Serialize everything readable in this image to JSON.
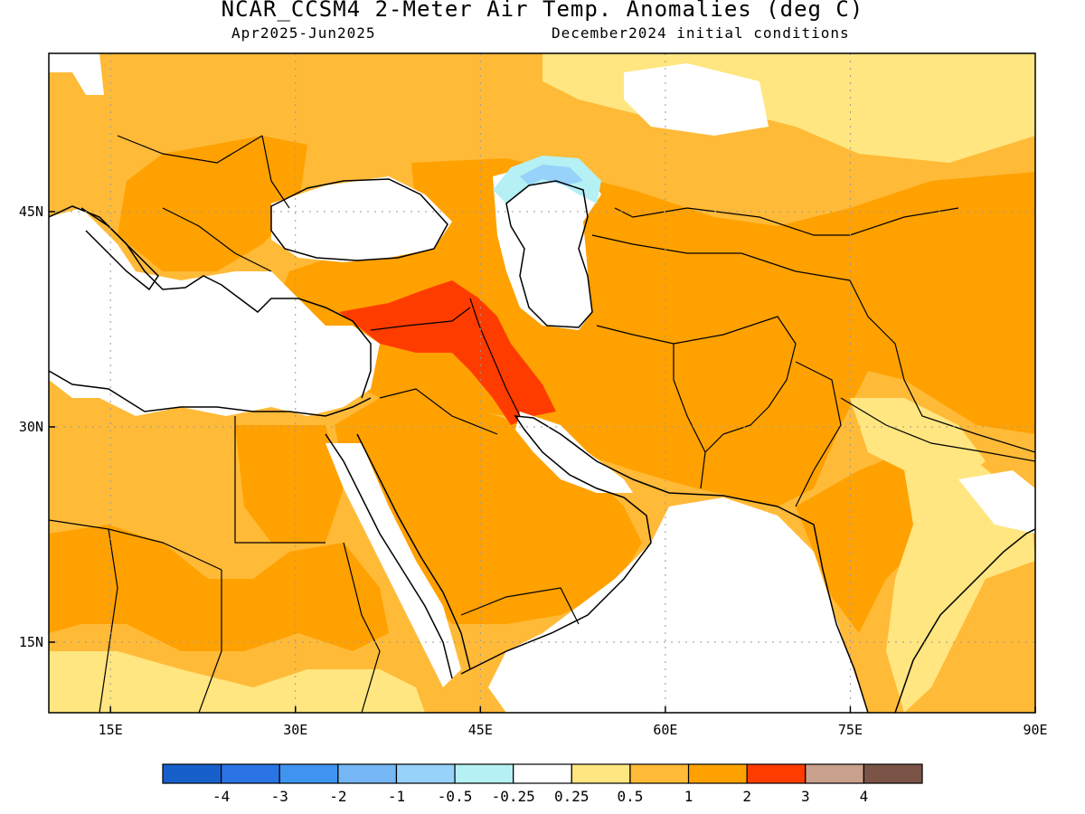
{
  "title": "NCAR_CCSM4 2-Meter Air Temp. Anomalies (deg C)",
  "subtitle_left": "Apr2025-Jun2025",
  "subtitle_right": "December2024 initial conditions",
  "lon_ticks": [
    {
      "value": 15,
      "label": "15E"
    },
    {
      "value": 30,
      "label": "30E"
    },
    {
      "value": 45,
      "label": "45E"
    },
    {
      "value": 60,
      "label": "60E"
    },
    {
      "value": 75,
      "label": "75E"
    },
    {
      "value": 90,
      "label": "90E"
    }
  ],
  "lat_ticks": [
    {
      "value": 15,
      "label": "15N"
    },
    {
      "value": 30,
      "label": "30N"
    },
    {
      "value": 45,
      "label": "45N"
    }
  ],
  "colorbar": {
    "colors": [
      "#1760cc",
      "#2a74e6",
      "#3f94ef",
      "#75b7f4",
      "#96d2fa",
      "#b4f0f4",
      "#ffffff",
      "#ffe680",
      "#ffba38",
      "#ffa100",
      "#ff3c00",
      "#c8a08c",
      "#7a5446"
    ],
    "labels": [
      "-4",
      "-3",
      "-2",
      "-1",
      "-0.5",
      "-0.25",
      "0.25",
      "0.5",
      "1",
      "2",
      "3",
      "4"
    ]
  },
  "legend_colors": {
    "neutral": "#ffffff",
    "warm_0_25": "#ffe680",
    "warm_0_5": "#ffba38",
    "warm_1": "#ffa100",
    "warm_2": "#ff3c00",
    "cool_0_25": "#b4f0f4",
    "cool_0_5": "#96d2fa"
  }
}
